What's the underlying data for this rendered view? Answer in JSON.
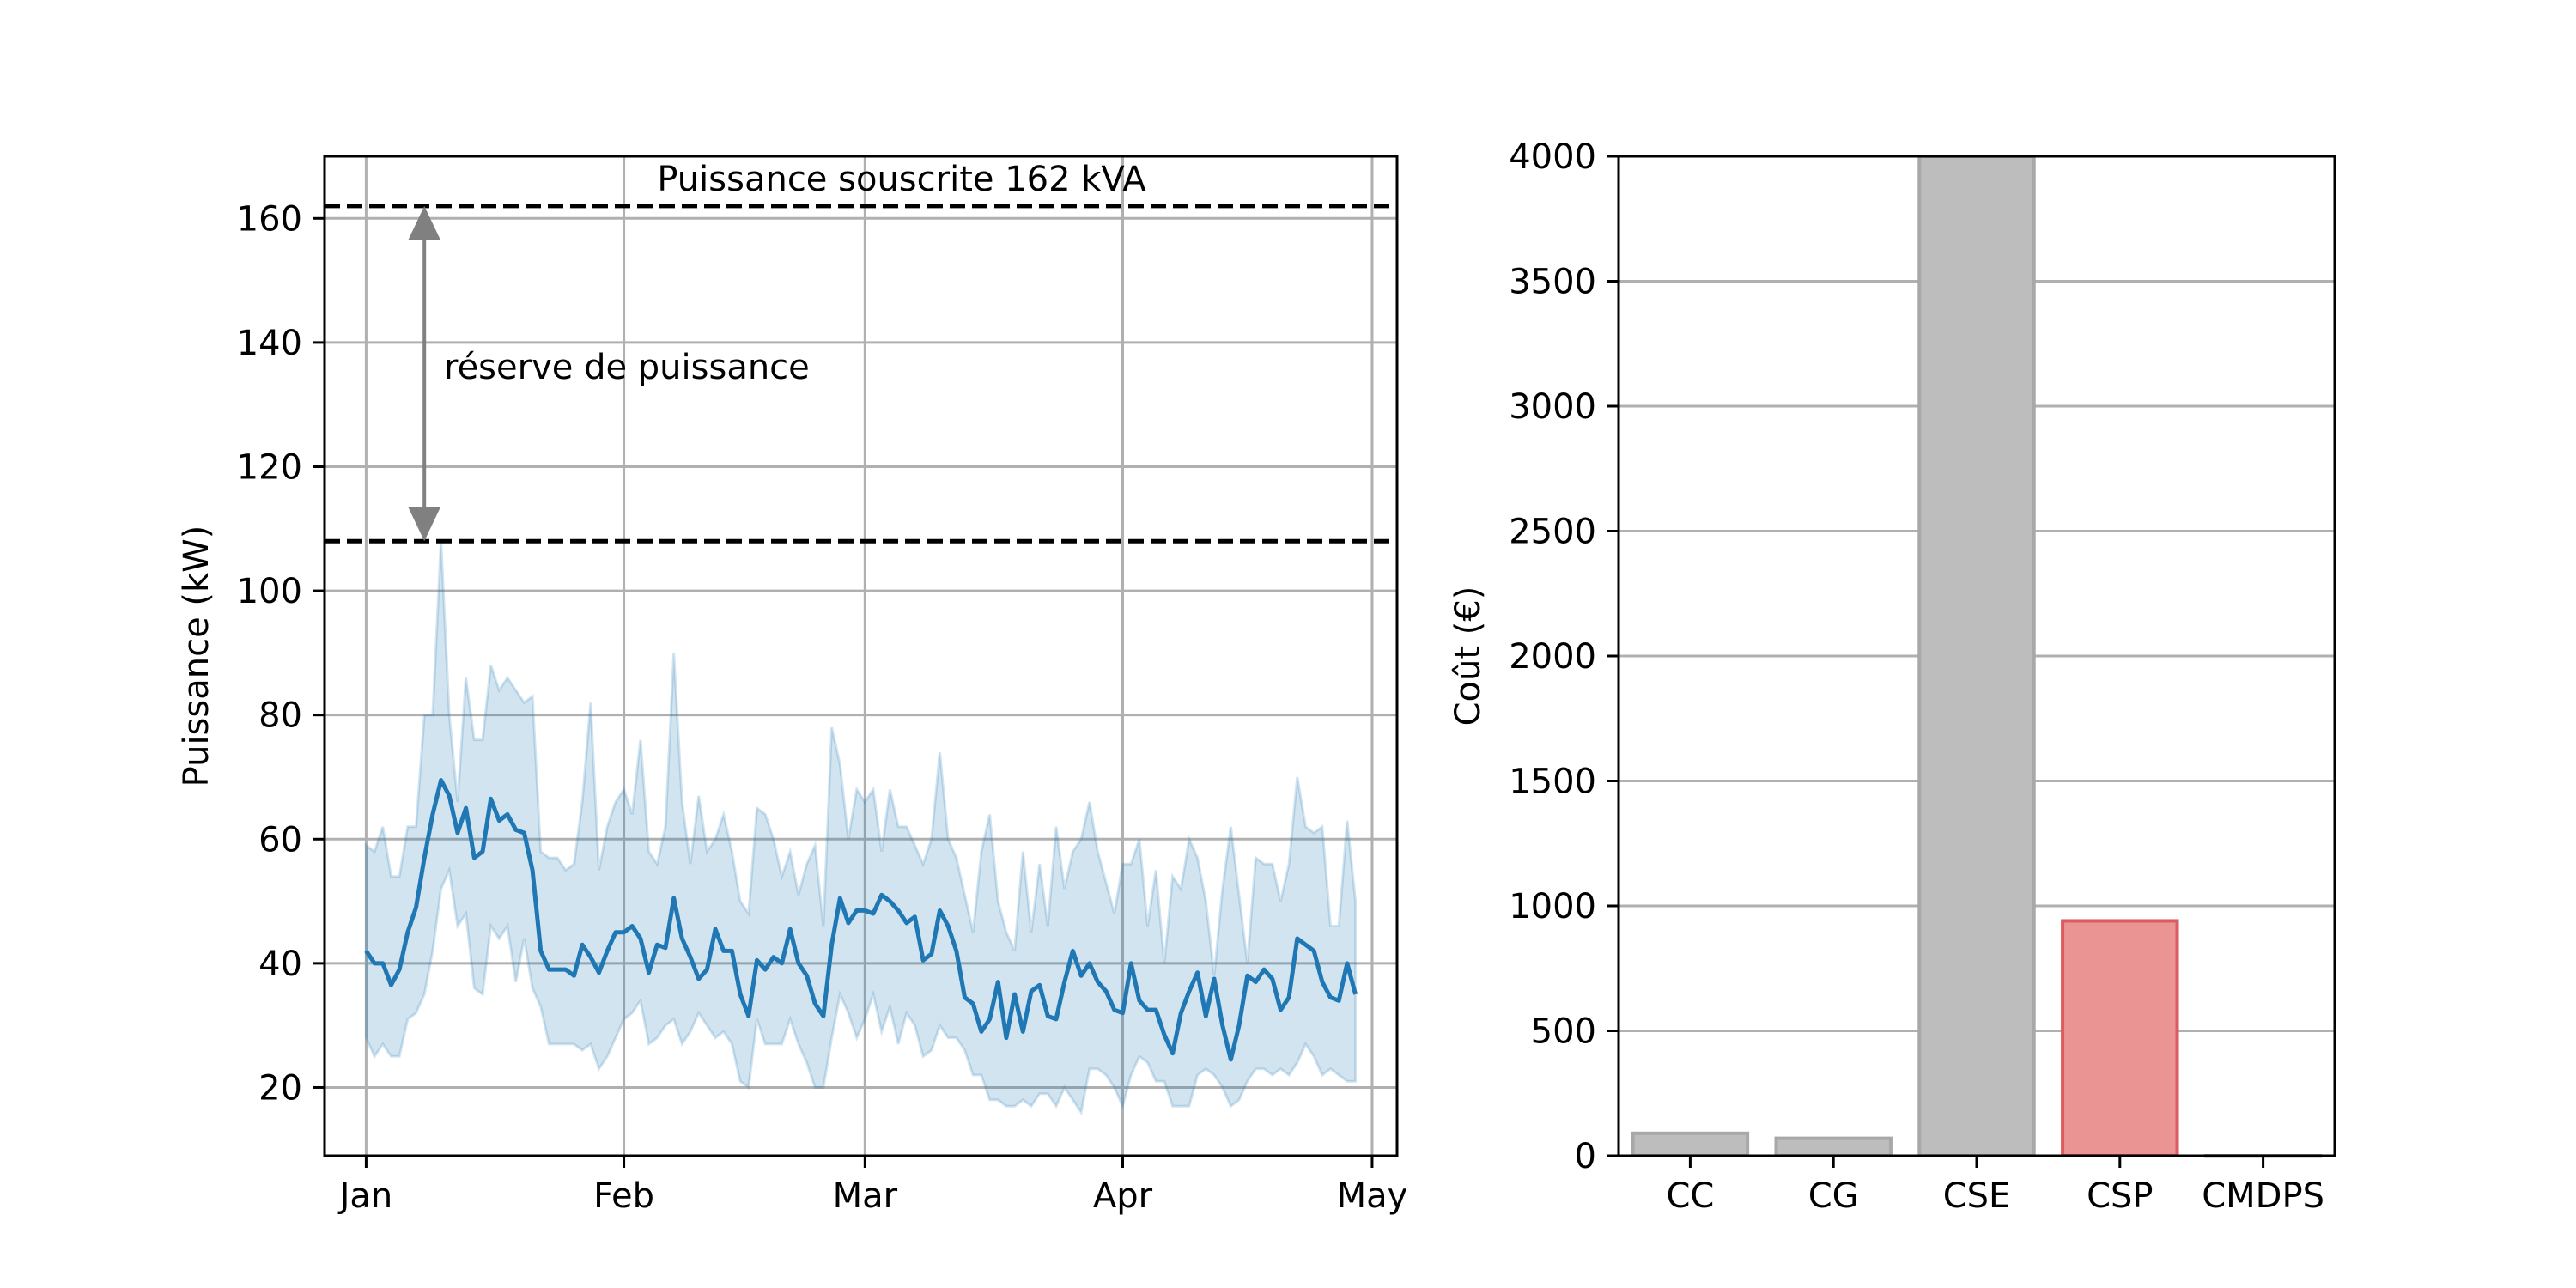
{
  "chart_data": [
    {
      "type": "line",
      "title": "",
      "xlabel": "",
      "ylabel": "Puissance (kW)",
      "xlim": [
        "2023-12-27",
        "2024-05-04"
      ],
      "ylim": [
        9,
        170
      ],
      "grid": true,
      "xticks": [
        {
          "date": "2024-01-01",
          "label": "Jan"
        },
        {
          "date": "2024-02-01",
          "label": "Feb"
        },
        {
          "date": "2024-03-01",
          "label": "Mar"
        },
        {
          "date": "2024-04-01",
          "label": "Apr"
        },
        {
          "date": "2024-05-01",
          "label": "May"
        }
      ],
      "yticks": [
        20,
        40,
        60,
        80,
        100,
        120,
        140,
        160
      ],
      "series": [
        {
          "role": "mean",
          "color": "#1f77b4",
          "x": [
            "2024-01-01",
            "2024-01-02",
            "2024-01-03",
            "2024-01-04",
            "2024-01-05",
            "2024-01-06",
            "2024-01-07",
            "2024-01-08",
            "2024-01-09",
            "2024-01-10",
            "2024-01-11",
            "2024-01-12",
            "2024-01-13",
            "2024-01-14",
            "2024-01-15",
            "2024-01-16",
            "2024-01-17",
            "2024-01-18",
            "2024-01-19",
            "2024-01-20",
            "2024-01-21",
            "2024-01-22",
            "2024-01-23",
            "2024-01-24",
            "2024-01-25",
            "2024-01-26",
            "2024-01-27",
            "2024-01-28",
            "2024-01-29",
            "2024-01-30",
            "2024-01-31",
            "2024-02-01",
            "2024-02-02",
            "2024-02-03",
            "2024-02-04",
            "2024-02-05",
            "2024-02-06",
            "2024-02-07",
            "2024-02-08",
            "2024-02-09",
            "2024-02-10",
            "2024-02-11",
            "2024-02-12",
            "2024-02-13",
            "2024-02-14",
            "2024-02-15",
            "2024-02-16",
            "2024-02-17",
            "2024-02-18",
            "2024-02-19",
            "2024-02-20",
            "2024-02-21",
            "2024-02-22",
            "2024-02-23",
            "2024-02-24",
            "2024-02-25",
            "2024-02-26",
            "2024-02-27",
            "2024-02-28",
            "2024-02-29",
            "2024-03-01",
            "2024-03-02",
            "2024-03-03",
            "2024-03-04",
            "2024-03-05",
            "2024-03-06",
            "2024-03-07",
            "2024-03-08",
            "2024-03-09",
            "2024-03-10",
            "2024-03-11",
            "2024-03-12",
            "2024-03-13",
            "2024-03-14",
            "2024-03-15",
            "2024-03-16",
            "2024-03-17",
            "2024-03-18",
            "2024-03-19",
            "2024-03-20",
            "2024-03-21",
            "2024-03-22",
            "2024-03-23",
            "2024-03-24",
            "2024-03-25",
            "2024-03-26",
            "2024-03-27",
            "2024-03-28",
            "2024-03-29",
            "2024-03-30",
            "2024-03-31",
            "2024-04-01",
            "2024-04-02",
            "2024-04-03",
            "2024-04-04",
            "2024-04-05",
            "2024-04-06",
            "2024-04-07",
            "2024-04-08",
            "2024-04-09",
            "2024-04-10",
            "2024-04-11",
            "2024-04-12",
            "2024-04-13",
            "2024-04-14",
            "2024-04-15",
            "2024-04-16",
            "2024-04-17",
            "2024-04-18",
            "2024-04-19",
            "2024-04-20",
            "2024-04-21",
            "2024-04-22",
            "2024-04-23",
            "2024-04-24",
            "2024-04-25",
            "2024-04-26",
            "2024-04-27",
            "2024-04-28",
            "2024-04-29"
          ],
          "y": [
            42,
            40,
            40,
            36.5,
            39,
            45,
            49,
            57,
            64,
            69.5,
            67,
            61,
            65,
            57,
            58,
            66.5,
            63,
            64,
            61.5,
            61,
            55,
            42,
            39,
            39,
            39,
            38,
            43,
            41,
            38.5,
            42,
            45,
            45,
            46,
            44,
            38.5,
            43,
            42.5,
            50.5,
            44,
            41,
            37.5,
            39,
            45.5,
            42,
            42,
            35,
            31.5,
            40.5,
            39,
            41,
            40,
            45.5,
            40,
            38,
            33.5,
            31.5,
            43,
            50.5,
            46.5,
            48.5,
            48.5,
            48,
            51,
            50,
            48.5,
            46.5,
            47.5,
            40.5,
            41.5,
            48.5,
            46,
            42,
            34.5,
            33.5,
            29,
            31,
            37,
            28,
            35,
            29,
            35.5,
            36.5,
            31.5,
            31,
            37,
            42,
            38,
            40,
            37,
            35.5,
            32.5,
            32,
            40,
            34,
            32.5,
            32.5,
            28.5,
            25.5,
            32,
            35.5,
            38.5,
            31.5,
            37.5,
            30,
            24.5,
            30,
            38,
            37,
            39,
            37.5,
            32.5,
            34.5,
            44,
            43,
            42,
            37,
            34.5,
            34,
            40,
            35
          ]
        },
        {
          "role": "band-upper",
          "color": "#1f77b4",
          "y": [
            59,
            58,
            62,
            54,
            54,
            62,
            62,
            80,
            80,
            108,
            80,
            66,
            86,
            76,
            76,
            88,
            84,
            86,
            84,
            82,
            83,
            58,
            57,
            57,
            55,
            56,
            66,
            82,
            55,
            62,
            66,
            68,
            64,
            76,
            58,
            56,
            62,
            90,
            66,
            56,
            67,
            58,
            60,
            64,
            58,
            50,
            48,
            65,
            64,
            60,
            54,
            58,
            51,
            56,
            59,
            46,
            78,
            72,
            60,
            68,
            66,
            68,
            58,
            68,
            62,
            62,
            59,
            56,
            60,
            74,
            60,
            57,
            51,
            45,
            58,
            64,
            50,
            45,
            42,
            58,
            45,
            56,
            46,
            62,
            52,
            58,
            60,
            66,
            58,
            53,
            48,
            56,
            56,
            60,
            46,
            55,
            40,
            54,
            52,
            60,
            57,
            50,
            38,
            52,
            62,
            51,
            40,
            57,
            56,
            56,
            50,
            56,
            70,
            62,
            61,
            62,
            46,
            46,
            63,
            50
          ]
        },
        {
          "role": "band-lower",
          "color": "#1f77b4",
          "y": [
            28,
            25,
            27,
            25,
            25,
            31,
            32,
            35,
            42,
            52,
            55,
            46,
            48,
            36,
            35,
            46,
            44,
            46,
            37,
            44,
            36,
            33,
            27,
            27,
            27,
            27,
            26,
            27,
            23,
            25,
            28,
            31,
            32,
            34,
            27,
            28,
            30,
            31,
            27,
            29,
            32,
            30,
            28,
            29,
            27,
            21,
            20,
            31,
            27,
            27,
            27,
            31,
            27,
            24,
            20,
            20,
            28,
            35,
            32,
            28,
            31,
            35,
            29,
            33,
            27,
            32,
            30,
            25,
            26,
            30,
            28,
            28,
            26,
            22,
            22,
            18,
            18,
            17,
            17,
            18,
            17,
            19,
            19,
            17,
            20,
            18,
            16,
            23,
            23,
            22,
            20,
            17,
            22,
            25,
            24,
            21,
            21,
            17,
            17,
            17,
            22,
            23,
            22,
            20,
            17,
            18,
            21,
            23,
            23,
            22,
            23,
            22,
            24,
            27,
            25,
            22,
            23,
            22,
            21,
            21
          ]
        }
      ],
      "hlines": [
        {
          "y": 162,
          "label": "Puissance souscrite 162 kVA",
          "style": "dashed",
          "color": "#000000"
        },
        {
          "y": 108,
          "label": "",
          "style": "dashed",
          "color": "#000000"
        }
      ],
      "annotations": [
        {
          "text": "réserve de puissance",
          "type": "double-arrow",
          "x": "2024-01-08",
          "from": 108,
          "to": 162,
          "color": "#808080"
        }
      ]
    },
    {
      "type": "bar",
      "title": "",
      "xlabel": "",
      "ylabel": "Coût (€)",
      "categories": [
        "CC",
        "CG",
        "CSE",
        "CSP",
        "CMDPS"
      ],
      "values": [
        90,
        70,
        4000,
        940,
        0
      ],
      "colors": [
        "#bdbdbd",
        "#bdbdbd",
        "#bdbdbd",
        "#ea9494",
        "#bdbdbd"
      ],
      "edge_colors": [
        "#a8a8a8",
        "#a8a8a8",
        "#a8a8a8",
        "#dd5c62",
        "#a8a8a8"
      ],
      "ylim": [
        0,
        4000
      ],
      "yticks": [
        0,
        500,
        1000,
        1500,
        2000,
        2500,
        3000,
        3500,
        4000
      ],
      "grid": true
    }
  ]
}
